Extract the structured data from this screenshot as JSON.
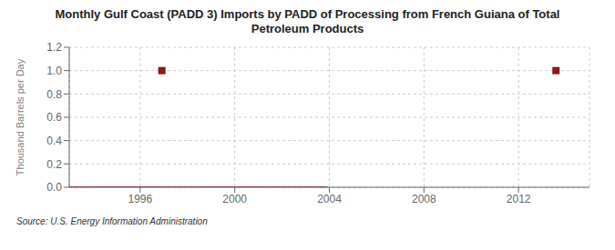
{
  "chart_data": {
    "type": "line",
    "title": "Monthly Gulf Coast (PADD 3) Imports by PADD of Processing from French Guiana of Total\nPetroleum Products",
    "ylabel": "Thousand Barrels per Day",
    "annotations": [
      "Source: U.S. Energy Information Administration"
    ],
    "xlim": [
      1993,
      2015
    ],
    "ylim": [
      0.0,
      1.2
    ],
    "xticks": [
      1996,
      2000,
      2004,
      2008,
      2012
    ],
    "yticks": [
      {
        "value": 0.0,
        "label": "0.0"
      },
      {
        "value": 0.2,
        "label": "0.2"
      },
      {
        "value": 0.4,
        "label": "0.4"
      },
      {
        "value": 0.6,
        "label": "0.6"
      },
      {
        "value": 0.8,
        "label": "0.8"
      },
      {
        "value": 1.0,
        "label": "1.0"
      },
      {
        "value": 1.2,
        "label": "1.2"
      }
    ],
    "grid": true,
    "series": [
      {
        "type": "line",
        "color": "#8b1a1a",
        "x": [
          1993.0,
          2003.917
        ],
        "values": [
          0.0,
          0.0
        ]
      },
      {
        "type": "scatter",
        "marker": "square",
        "color": "#8b1a1a",
        "x": [
          1996.917,
          2013.583
        ],
        "values": [
          1.0,
          1.0
        ]
      }
    ]
  }
}
